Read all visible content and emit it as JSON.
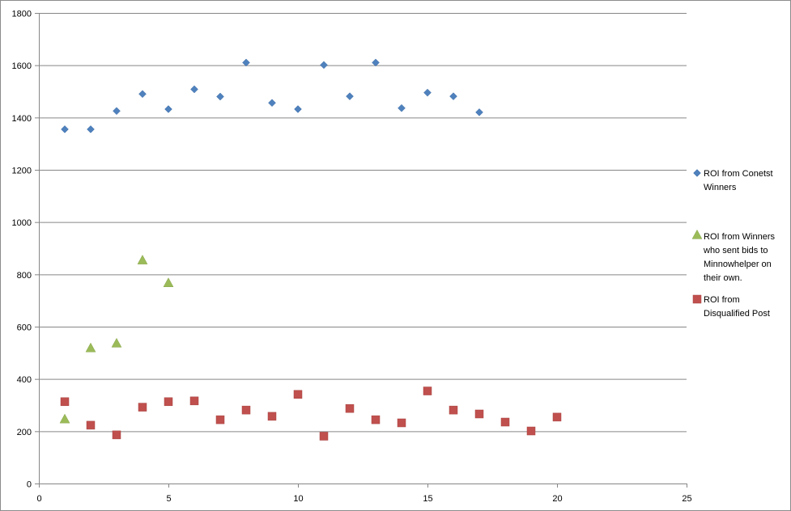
{
  "chart_data": {
    "type": "scatter",
    "title": "",
    "xlabel": "",
    "ylabel": "",
    "xlim": [
      0,
      25
    ],
    "ylim": [
      0,
      1800
    ],
    "x_ticks": [
      0,
      5,
      10,
      15,
      20,
      25
    ],
    "y_ticks": [
      0,
      200,
      400,
      600,
      800,
      1000,
      1200,
      1400,
      1600,
      1800
    ],
    "x_tick_labels": [
      "0",
      "5",
      "10",
      "15",
      "20",
      "25"
    ],
    "y_tick_labels": [
      "0",
      "200",
      "400",
      "600",
      "800",
      "1000",
      "1200",
      "1400",
      "1600",
      "1800"
    ],
    "grid": "horizontal major gridlines",
    "legend_position": "right",
    "series": [
      {
        "name": "ROI from Conetst Winners",
        "legend_lines": [
          "ROI from Conetst",
          "Winners"
        ],
        "marker": "diamond",
        "color": "#4F81BD",
        "x": [
          1,
          2,
          3,
          4,
          5,
          6,
          7,
          8,
          9,
          10,
          11,
          12,
          13,
          14,
          15,
          16,
          17
        ],
        "y": [
          1355,
          1355,
          1425,
          1490,
          1432,
          1508,
          1480,
          1610,
          1456,
          1432,
          1601,
          1481,
          1610,
          1436,
          1495,
          1481,
          1420
        ]
      },
      {
        "name": "ROI from Winners who sent bids to Minnowhelper on their own.",
        "legend_lines": [
          "ROI from Winners",
          "who sent bids to",
          "Minnowhelper on",
          "their own."
        ],
        "marker": "triangle",
        "color": "#9BBB59",
        "x": [
          1,
          2,
          3,
          4,
          5
        ],
        "y": [
          245,
          517,
          535,
          853,
          766
        ]
      },
      {
        "name": "ROI from Disqualified Post",
        "legend_lines": [
          "ROI from",
          "Disqualified Post"
        ],
        "marker": "square",
        "color": "#C0504D",
        "x": [
          1,
          2,
          3,
          4,
          5,
          6,
          7,
          8,
          9,
          10,
          11,
          12,
          13,
          14,
          15,
          16,
          17,
          18,
          19,
          20
        ],
        "y": [
          313,
          223,
          186,
          292,
          313,
          316,
          244,
          281,
          257,
          341,
          181,
          287,
          244,
          232,
          354,
          281,
          266,
          235,
          201,
          254
        ]
      }
    ]
  }
}
